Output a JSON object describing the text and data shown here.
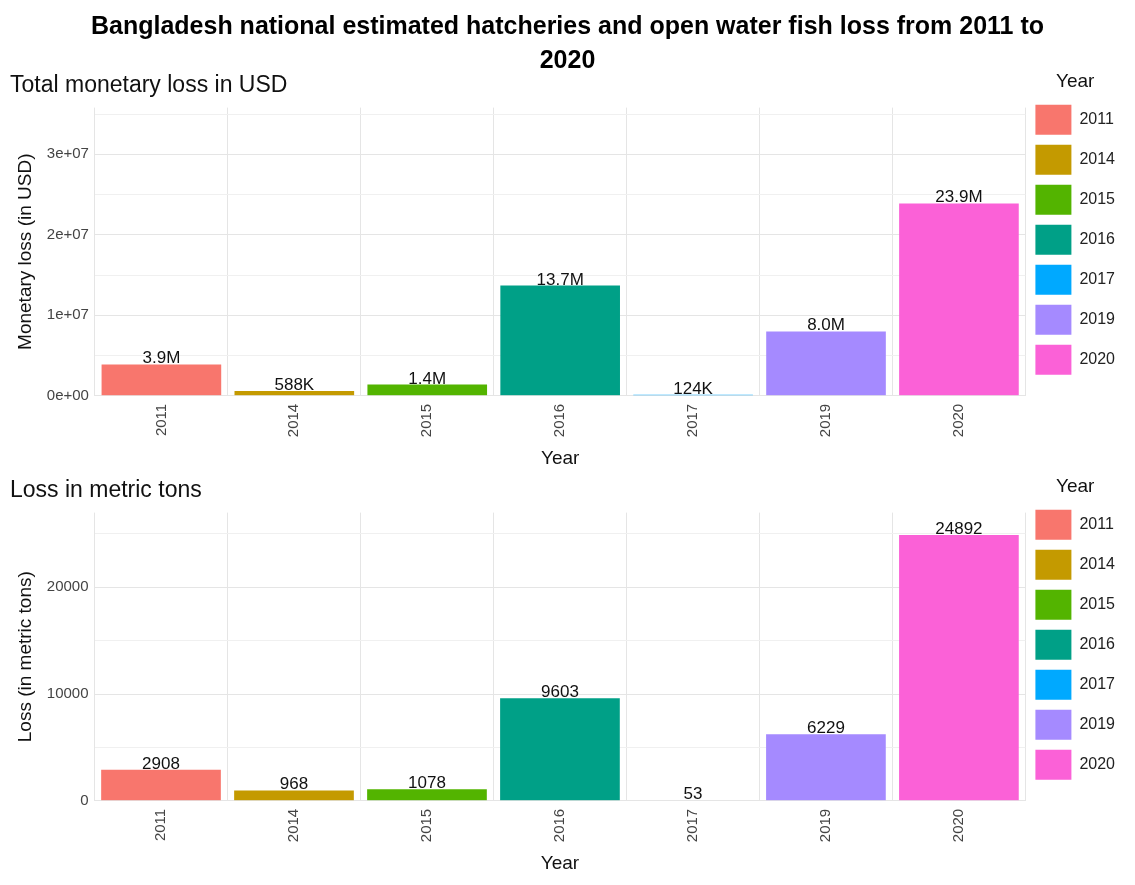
{
  "chart_data": [
    {
      "type": "bar",
      "title": "Bangladesh national estimated hatcheries and open water fish loss from 2011 to 2020",
      "subtitle": "Total monetary loss in USD",
      "xlabel": "Year",
      "ylabel": "Monetary loss (in USD)",
      "legend_title": "Year",
      "categories": [
        "2011",
        "2014",
        "2015",
        "2016",
        "2017",
        "2019",
        "2020"
      ],
      "series": [
        {
          "name": "2011",
          "color": "#f8766d",
          "values": [
            3900000,
            null,
            null,
            null,
            null,
            null,
            null
          ],
          "value_labels": [
            "3.9M",
            null,
            null,
            null,
            null,
            null,
            null
          ]
        },
        {
          "name": "2014",
          "color": "#c49a00",
          "values": [
            null,
            588000,
            null,
            null,
            null,
            null,
            null
          ],
          "value_labels": [
            null,
            "588K",
            null,
            null,
            null,
            null,
            null
          ]
        },
        {
          "name": "2015",
          "color": "#53b400",
          "values": [
            null,
            null,
            1400000,
            null,
            null,
            null,
            null
          ],
          "value_labels": [
            null,
            null,
            "1.4M",
            null,
            null,
            null,
            null
          ]
        },
        {
          "name": "2016",
          "color": "#00a087",
          "values": [
            null,
            null,
            null,
            13700000,
            null,
            null,
            null
          ],
          "value_labels": [
            null,
            null,
            null,
            "13.7M",
            null,
            null,
            null
          ]
        },
        {
          "name": "2017",
          "color": "#00a9ff",
          "values": [
            null,
            null,
            null,
            null,
            124000,
            null,
            null
          ],
          "value_labels": [
            null,
            null,
            null,
            null,
            "124K",
            null,
            null
          ]
        },
        {
          "name": "2019",
          "color": "#a58aff",
          "values": [
            null,
            null,
            null,
            null,
            null,
            8000000,
            null
          ],
          "value_labels": [
            null,
            null,
            null,
            null,
            null,
            "8.0M",
            null
          ]
        },
        {
          "name": "2020",
          "color": "#fb61d7",
          "values": [
            null,
            null,
            null,
            null,
            null,
            null,
            23900000
          ],
          "value_labels": [
            null,
            null,
            null,
            null,
            null,
            null,
            "23.9M"
          ]
        }
      ],
      "ylim": [
        0,
        35800000
      ],
      "yticks": [
        {
          "value": 0,
          "label": "0e+00"
        },
        {
          "value": 5000000,
          "label": null
        },
        {
          "value": 10000000,
          "label": "1e+07"
        },
        {
          "value": 15000000,
          "label": null
        },
        {
          "value": 20000000,
          "label": "2e+07"
        },
        {
          "value": 25000000,
          "label": null
        },
        {
          "value": 30000000,
          "label": "3e+07"
        },
        {
          "value": 35000000,
          "label": null
        }
      ],
      "grid": true,
      "legend": "right"
    },
    {
      "type": "bar",
      "title": "Loss in metric tons",
      "xlabel": "Year",
      "ylabel": "Loss (in metric tons)",
      "legend_title": "Year",
      "categories": [
        "2011",
        "2014",
        "2015",
        "2016",
        "2017",
        "2019",
        "2020"
      ],
      "series": [
        {
          "name": "2011",
          "color": "#f8766d",
          "values": [
            2908,
            null,
            null,
            null,
            null,
            null,
            null
          ]
        },
        {
          "name": "2014",
          "color": "#c49a00",
          "values": [
            null,
            968,
            null,
            null,
            null,
            null,
            null
          ]
        },
        {
          "name": "2015",
          "color": "#53b400",
          "values": [
            null,
            null,
            1078,
            null,
            null,
            null,
            null
          ]
        },
        {
          "name": "2016",
          "color": "#00a087",
          "values": [
            null,
            null,
            null,
            9603,
            null,
            null,
            null
          ]
        },
        {
          "name": "2017",
          "color": "#00a9ff",
          "values": [
            null,
            null,
            null,
            null,
            53,
            null,
            null
          ]
        },
        {
          "name": "2019",
          "color": "#a58aff",
          "values": [
            null,
            null,
            null,
            null,
            null,
            6229,
            null
          ]
        },
        {
          "name": "2020",
          "color": "#fb61d7",
          "values": [
            null,
            null,
            null,
            null,
            null,
            null,
            24892
          ]
        }
      ],
      "ylim": [
        0,
        27000
      ],
      "yticks": [
        0,
        {
          "value": 5000,
          "label": null
        },
        10000,
        {
          "value": 15000,
          "label": null
        },
        20000,
        {
          "value": 25000,
          "label": null
        }
      ],
      "grid": true,
      "legend": "right",
      "data_labels": true
    }
  ]
}
